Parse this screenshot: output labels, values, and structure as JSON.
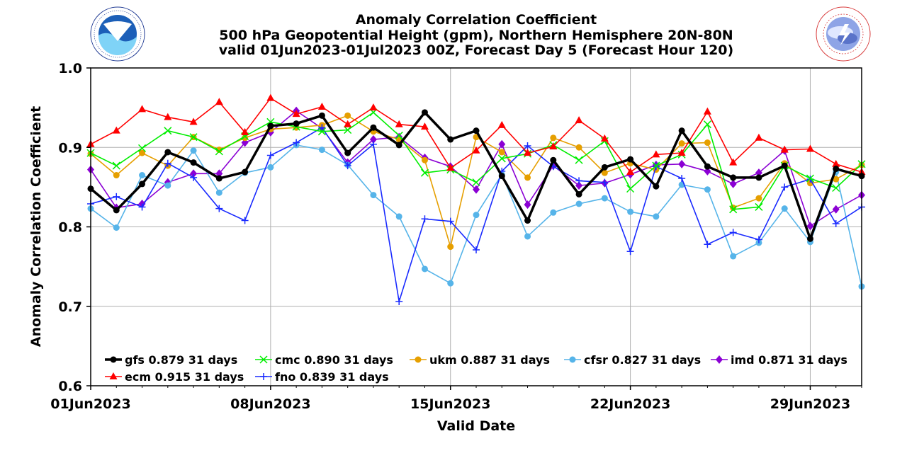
{
  "logos": {
    "left": {
      "name": "NOAA",
      "ring_text": "NATIONAL OCEANIC AND ATMOSPHERIC ADMINISTRATION · U.S. DEPARTMENT OF COMMERCE"
    },
    "right": {
      "name": "National Weather Service",
      "ring_text": "NATIONAL WEATHER SERVICE"
    }
  },
  "chart_data": {
    "type": "line",
    "title": [
      "Anomaly Correlation Coefficient",
      "500 hPa Geopotential Height (gpm), Northern Hemisphere 20N-80N",
      "valid 01Jun2023-01Jul2023 00Z, Forecast Day 5 (Forecast Hour 120)"
    ],
    "xlabel": "Valid Date",
    "ylabel": "Anomaly Correlation Coefficient",
    "ylim": [
      0.6,
      1.0
    ],
    "xlim": [
      1,
      31
    ],
    "yticks": [
      "0.6",
      "0.7",
      "0.8",
      "0.9",
      "1.0"
    ],
    "xticks": [
      {
        "day": 1,
        "label": "01Jun2023"
      },
      {
        "day": 8,
        "label": "08Jun2023"
      },
      {
        "day": 15,
        "label": "15Jun2023"
      },
      {
        "day": 22,
        "label": "22Jun2023"
      },
      {
        "day": 29,
        "label": "29Jun2023"
      }
    ],
    "grid": true,
    "legend_position": "bottom",
    "x": [
      1,
      2,
      3,
      4,
      5,
      6,
      7,
      8,
      9,
      10,
      11,
      12,
      13,
      14,
      15,
      16,
      17,
      18,
      19,
      20,
      21,
      22,
      23,
      24,
      25,
      26,
      27,
      28,
      29,
      30,
      31
    ],
    "series": [
      {
        "name": "gfs",
        "label": "gfs 0.879 31 days",
        "color": "#000000",
        "marker": "circle",
        "values": [
          0.848,
          0.821,
          0.854,
          0.894,
          0.881,
          0.861,
          0.869,
          0.927,
          0.93,
          0.94,
          0.893,
          0.925,
          0.903,
          0.944,
          0.91,
          0.921,
          0.864,
          0.808,
          0.884,
          0.841,
          0.875,
          0.885,
          0.851,
          0.921,
          0.876,
          0.862,
          0.862,
          0.877,
          0.785,
          0.873,
          0.864
        ]
      },
      {
        "name": "ecm",
        "label": "ecm 0.915 31 days",
        "color": "#ff0000",
        "marker": "triangle",
        "values": [
          0.904,
          0.921,
          0.948,
          0.938,
          0.932,
          0.957,
          0.919,
          0.962,
          0.942,
          0.951,
          0.929,
          0.95,
          0.929,
          0.926,
          0.874,
          0.896,
          0.928,
          0.893,
          0.901,
          0.934,
          0.911,
          0.869,
          0.891,
          0.893,
          0.945,
          0.881,
          0.912,
          0.897,
          0.898,
          0.879,
          0.869
        ]
      },
      {
        "name": "cmc",
        "label": "cmc 0.890 31 days",
        "color": "#00ee00",
        "marker": "x",
        "values": [
          0.893,
          0.877,
          0.899,
          0.921,
          0.913,
          0.895,
          0.914,
          0.932,
          0.926,
          0.92,
          0.922,
          0.944,
          0.915,
          0.868,
          0.872,
          0.856,
          0.886,
          0.892,
          0.903,
          0.884,
          0.908,
          0.848,
          0.877,
          0.891,
          0.929,
          0.822,
          0.825,
          0.877,
          0.861,
          0.849,
          0.879
        ]
      },
      {
        "name": "fno",
        "label": "fno 0.839 31 days",
        "color": "#1a2bff",
        "marker": "plus",
        "values": [
          0.829,
          0.838,
          0.825,
          0.88,
          0.862,
          0.823,
          0.808,
          0.89,
          0.906,
          0.925,
          0.877,
          0.904,
          0.706,
          0.81,
          0.807,
          0.771,
          0.87,
          0.902,
          0.876,
          0.858,
          0.856,
          0.769,
          0.876,
          0.861,
          0.778,
          0.793,
          0.784,
          0.85,
          0.86,
          0.804,
          0.825
        ]
      },
      {
        "name": "ukm",
        "label": "ukm 0.887 31 days",
        "color": "#e69f00",
        "marker": "circle",
        "values": [
          0.892,
          0.865,
          0.893,
          0.877,
          0.913,
          0.897,
          0.912,
          0.923,
          0.925,
          0.928,
          0.94,
          0.92,
          0.91,
          0.884,
          0.775,
          0.913,
          0.894,
          0.862,
          0.912,
          0.9,
          0.868,
          0.88,
          0.872,
          0.905,
          0.906,
          0.824,
          0.836,
          0.88,
          0.855,
          0.86,
          0.878
        ]
      },
      {
        "name": "cfsr",
        "label": "cfsr 0.827 31 days",
        "color": "#56b4e9",
        "marker": "circle",
        "values": [
          0.823,
          0.799,
          0.865,
          0.852,
          0.896,
          0.843,
          0.868,
          0.875,
          0.903,
          0.897,
          0.878,
          0.84,
          0.813,
          0.747,
          0.729,
          0.815,
          0.866,
          0.788,
          0.818,
          0.829,
          0.836,
          0.819,
          0.813,
          0.853,
          0.847,
          0.763,
          0.78,
          0.823,
          0.781,
          0.869,
          0.725
        ]
      },
      {
        "name": "imd",
        "label": "imd 0.871 31 days",
        "color": "#8b00d4",
        "marker": "diamond",
        "values": [
          0.872,
          0.824,
          0.829,
          0.856,
          0.867,
          0.867,
          0.906,
          0.919,
          0.946,
          0.924,
          0.881,
          0.91,
          0.913,
          0.887,
          0.876,
          0.847,
          0.904,
          0.828,
          0.877,
          0.852,
          0.855,
          0.866,
          0.878,
          0.879,
          0.87,
          0.854,
          0.868,
          0.896,
          0.801,
          0.822,
          0.84
        ]
      }
    ]
  }
}
